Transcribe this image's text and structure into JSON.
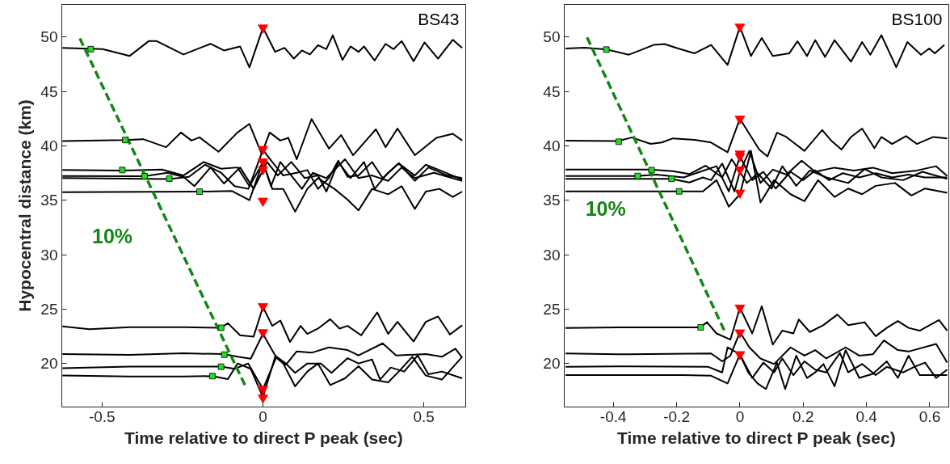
{
  "chart_data": [
    {
      "type": "line",
      "xlabel": "Time relative to direct P peak (sec)",
      "ylabel": "Hypocentral distance (km)",
      "xlim": [
        -0.625,
        0.63
      ],
      "ylim": [
        16,
        53
      ],
      "xticks": [
        -0.5,
        0,
        0.5
      ],
      "yticks": [
        20,
        25,
        30,
        35,
        40,
        45,
        50
      ],
      "grid": false,
      "annotations": [
        "BS43",
        "10%"
      ],
      "series": [
        {
          "type": "line",
          "color": "#000000",
          "x": [
            -0.623,
            -0.498,
            -0.414,
            -0.355,
            -0.33,
            -0.247,
            -0.163,
            -0.121,
            -0.071,
            -0.042,
            0,
            0.038,
            0.067,
            0.096,
            0.121,
            0.146,
            0.171,
            0.197,
            0.217,
            0.247,
            0.272,
            0.297,
            0.314,
            0.347,
            0.381,
            0.406,
            0.431,
            0.468,
            0.502,
            0.544,
            0.59,
            0.619
          ],
          "values": [
            49.01,
            48.89,
            48.27,
            49.63,
            49.63,
            48.4,
            49.38,
            48.77,
            49.14,
            47.21,
            50.86,
            48.64,
            49.01,
            48.02,
            48.77,
            48.4,
            49.26,
            48.89,
            50.17,
            47.9,
            49.14,
            48.64,
            49.14,
            47.85,
            49.38,
            48.89,
            49.63,
            47.78,
            49.51,
            48.02,
            49.75,
            49.01
          ]
        },
        {
          "type": "line",
          "color": "#000000",
          "x": [
            -0.623,
            -0.431,
            -0.372,
            -0.301,
            -0.255,
            -0.222,
            -0.197,
            -0.138,
            -0.079,
            -0.042,
            -0.004,
            0.021,
            0.054,
            0.079,
            0.105,
            0.151,
            0.205,
            0.243,
            0.28,
            0.351,
            0.381,
            0.418,
            0.472,
            0.539,
            0.59,
            0.619
          ],
          "values": [
            40.44,
            40.54,
            40.62,
            39.88,
            41.23,
            40.49,
            40.79,
            39.46,
            41.23,
            42.02,
            39.26,
            41.23,
            40.49,
            40.74,
            38.77,
            42.47,
            39.75,
            40.99,
            39.14,
            41.53,
            39.88,
            41.6,
            39.14,
            40.74,
            41.11,
            40.49
          ]
        },
        {
          "type": "line",
          "color": "#000000",
          "x": [
            -0.623,
            -0.439,
            -0.314,
            -0.247,
            -0.184,
            -0.13,
            -0.079,
            -0.042,
            0,
            0.029,
            0.063,
            0.105,
            0.138,
            0.171,
            0.205,
            0.234,
            0.263,
            0.297,
            0.339,
            0.372,
            0.422,
            0.472,
            0.506,
            0.548,
            0.619
          ],
          "values": [
            37.78,
            37.73,
            37.83,
            37.28,
            38.52,
            37.9,
            38.02,
            36.3,
            39.63,
            38.52,
            37.28,
            37.53,
            37.78,
            36.05,
            37.04,
            38.64,
            37.16,
            37.28,
            38.52,
            37.04,
            38.4,
            37.28,
            38.27,
            37.78,
            36.91
          ]
        },
        {
          "type": "line",
          "color": "#000000",
          "x": [
            -0.623,
            -0.368,
            -0.297,
            -0.247,
            -0.213,
            -0.163,
            -0.121,
            -0.071,
            -0.029,
            -0.004,
            0.013,
            0.046,
            0.088,
            0.13,
            0.171,
            0.197,
            0.234,
            0.272,
            0.314,
            0.347,
            0.389,
            0.422,
            0.472,
            0.514,
            0.573,
            0.619
          ],
          "values": [
            37.23,
            37.21,
            37.53,
            37.16,
            36.3,
            38.02,
            36.54,
            38.02,
            36.05,
            37.53,
            38.52,
            37.28,
            38.52,
            37.04,
            37.28,
            35.8,
            38.52,
            37.04,
            38.52,
            36.05,
            37.53,
            38.4,
            36.79,
            38.02,
            37.28,
            37.04
          ]
        },
        {
          "type": "line",
          "color": "#000000",
          "x": [
            -0.623,
            -0.291,
            -0.23,
            -0.18,
            -0.13,
            -0.088,
            -0.046,
            0,
            0.025,
            0.054,
            0.088,
            0.121,
            0.155,
            0.197,
            0.255,
            0.297,
            0.339,
            0.389,
            0.431,
            0.472,
            0.531,
            0.619
          ],
          "values": [
            37.04,
            36.96,
            37.16,
            38.27,
            37.53,
            36.3,
            36.05,
            38.52,
            36.3,
            38.52,
            37.28,
            36.05,
            37.53,
            37.04,
            38.77,
            37.04,
            37.28,
            36.79,
            38.02,
            37.04,
            37.53,
            36.79
          ]
        },
        {
          "type": "line",
          "color": "#000000",
          "x": [
            -0.623,
            -0.197,
            -0.096,
            -0.042,
            0,
            0.029,
            0.063,
            0.1,
            0.138,
            0.171,
            0.222,
            0.263,
            0.297,
            0.339,
            0.389,
            0.431,
            0.472,
            0.506,
            0.548,
            0.59,
            0.619
          ],
          "values": [
            35.75,
            35.8,
            35.85,
            35.01,
            38.52,
            36.05,
            36.05,
            33.95,
            36.05,
            37.04,
            36.05,
            35.06,
            34.07,
            36.05,
            35.55,
            36.3,
            34.2,
            35.8,
            36.05,
            35.31,
            35.8
          ]
        },
        {
          "type": "line",
          "color": "#000000",
          "x": [
            -0.623,
            -0.539,
            -0.414,
            -0.247,
            -0.13,
            -0.109,
            -0.071,
            -0.029,
            0,
            0.029,
            0.054,
            0.084,
            0.117,
            0.138,
            0.171,
            0.209,
            0.238,
            0.263,
            0.305,
            0.355,
            0.389,
            0.418,
            0.468,
            0.506,
            0.544,
            0.581,
            0.619
          ],
          "values": [
            23.41,
            23.16,
            23.33,
            23.33,
            23.28,
            23.7,
            22.59,
            22.47,
            25.19,
            23.46,
            23.95,
            21.98,
            23.46,
            22.72,
            23.21,
            24.07,
            23.21,
            23.46,
            22.59,
            24.69,
            22.72,
            23.83,
            22.02,
            23.83,
            24.32,
            22.67,
            23.51
          ]
        },
        {
          "type": "line",
          "color": "#000000",
          "x": [
            -0.623,
            -0.414,
            -0.247,
            -0.121,
            -0.079,
            -0.038,
            0,
            0.038,
            0.071,
            0.105,
            0.151,
            0.205,
            0.263,
            0.297,
            0.372,
            0.414,
            0.506,
            0.556,
            0.598,
            0.619
          ],
          "values": [
            20.86,
            20.79,
            20.94,
            20.86,
            20.62,
            20.44,
            22.72,
            20.74,
            19.88,
            21.11,
            20.99,
            21.48,
            21.23,
            20.74,
            21.85,
            20.74,
            20.86,
            20.62,
            21.36,
            20.54
          ]
        },
        {
          "type": "line",
          "color": "#000000",
          "x": [
            -0.623,
            -0.414,
            -0.247,
            -0.13,
            -0.088,
            -0.046,
            0,
            0.042,
            0.071,
            0.1,
            0.138,
            0.18,
            0.213,
            0.263,
            0.297,
            0.339,
            0.364,
            0.397,
            0.439,
            0.481,
            0.514,
            0.556,
            0.619
          ],
          "values": [
            19.57,
            19.72,
            19.72,
            19.72,
            19.51,
            20.0,
            17.65,
            20.62,
            20.0,
            19.14,
            20.0,
            20.0,
            19.14,
            20.49,
            20.0,
            20.37,
            18.52,
            19.63,
            19.26,
            20.74,
            19.01,
            19.26,
            18.64
          ]
        },
        {
          "type": "line",
          "color": "#000000",
          "x": [
            -0.623,
            -0.414,
            -0.247,
            -0.157,
            -0.109,
            -0.079,
            -0.038,
            0,
            0.038,
            0.063,
            0.1,
            0.138,
            0.171,
            0.209,
            0.255,
            0.297,
            0.339,
            0.389,
            0.422,
            0.464,
            0.506,
            0.556,
            0.619
          ],
          "values": [
            18.89,
            18.81,
            18.81,
            18.84,
            18.57,
            20.0,
            19.51,
            16.91,
            20.62,
            20.0,
            17.9,
            19.26,
            20.0,
            18.02,
            18.64,
            19.75,
            18.52,
            18.27,
            19.26,
            20.62,
            18.89,
            18.52,
            20.62
          ]
        },
        {
          "type": "line",
          "color": "#138613",
          "line_style": "dashed",
          "x": [
            -0.569,
            -0.056
          ],
          "values": [
            49.88,
            18.02
          ]
        },
        {
          "type": "scatter",
          "color": "#22dd22",
          "marker": "square",
          "x": [
            -0.535,
            -0.428,
            -0.437,
            -0.368,
            -0.291,
            -0.197,
            -0.13,
            -0.12,
            -0.13,
            -0.157
          ],
          "values": [
            48.89,
            40.54,
            37.78,
            37.21,
            36.99,
            35.8,
            23.28,
            20.81,
            19.7,
            18.84
          ]
        },
        {
          "type": "scatter",
          "color": "#ff0000",
          "marker": "triangle",
          "x": [
            0,
            0,
            0,
            0,
            0,
            0,
            0,
            0,
            0
          ],
          "values": [
            50.86,
            39.7,
            38.57,
            37.83,
            34.94,
            25.26,
            22.86,
            17.65,
            16.86
          ]
        }
      ]
    },
    {
      "type": "line",
      "xlabel": "Time relative to direct P peak (sec)",
      "xlim": [
        -0.555,
        0.66
      ],
      "ylim": [
        16,
        53
      ],
      "xticks": [
        -0.4,
        -0.2,
        0,
        0.2,
        0.4,
        0.6
      ],
      "yticks": [
        20,
        25,
        30,
        35,
        40,
        45,
        50
      ],
      "grid": false,
      "annotations": [
        "BS100",
        "10%"
      ],
      "series": [
        {
          "type": "line",
          "color": "#000000",
          "x": [
            -0.551,
            -0.49,
            -0.42,
            -0.351,
            -0.316,
            -0.273,
            -0.238,
            -0.195,
            -0.143,
            -0.091,
            -0.039,
            0,
            0.035,
            0.069,
            0.104,
            0.156,
            0.182,
            0.212,
            0.238,
            0.269,
            0.299,
            0.351,
            0.386,
            0.412,
            0.447,
            0.494,
            0.529,
            0.572,
            0.598,
            0.616,
            0.646
          ],
          "values": [
            48.95,
            49.03,
            48.85,
            48.38,
            48.77,
            49.28,
            49.36,
            48.95,
            48.51,
            49.28,
            47.44,
            50.95,
            48.26,
            49.92,
            48.26,
            48.51,
            49.62,
            48.26,
            49.72,
            48.18,
            49.72,
            47.74,
            49.54,
            48.38,
            50.18,
            47.23,
            49.54,
            48.38,
            48.95,
            48.51,
            49.28
          ]
        },
        {
          "type": "line",
          "color": "#000000",
          "x": [
            -0.551,
            -0.386,
            -0.342,
            -0.282,
            -0.247,
            -0.212,
            -0.143,
            -0.091,
            -0.039,
            0,
            0.039,
            0.061,
            0.087,
            0.117,
            0.147,
            0.169,
            0.204,
            0.26,
            0.29,
            0.321,
            0.351,
            0.386,
            0.425,
            0.447,
            0.481,
            0.525,
            0.559,
            0.611,
            0.655
          ],
          "values": [
            40.49,
            40.44,
            40.77,
            40.18,
            40.31,
            40.69,
            40.56,
            40.31,
            39.41,
            42.49,
            40.69,
            39.67,
            39.03,
            41.21,
            40.82,
            40.31,
            39.54,
            41.46,
            40.44,
            39.67,
            40.82,
            41.59,
            39.79,
            40.82,
            40.18,
            40.9,
            40.18,
            40.82,
            40.69
          ]
        },
        {
          "type": "line",
          "color": "#000000",
          "x": [
            -0.551,
            -0.282,
            -0.212,
            -0.16,
            -0.108,
            -0.056,
            -0.026,
            0,
            0.03,
            0.065,
            0.104,
            0.147,
            0.195,
            0.238,
            0.299,
            0.36,
            0.42,
            0.481,
            0.559,
            0.62,
            0.655
          ],
          "values": [
            37.82,
            37.82,
            37.67,
            37.41,
            38.18,
            37.1,
            38.77,
            37.62,
            39.54,
            36.59,
            37.82,
            37.36,
            38.64,
            37.62,
            38.0,
            37.74,
            38.0,
            37.49,
            37.74,
            38.13,
            37.23
          ]
        },
        {
          "type": "line",
          "color": "#000000",
          "x": [
            -0.551,
            -0.325,
            -0.264,
            -0.178,
            -0.126,
            -0.074,
            -0.035,
            0,
            0.039,
            0.074,
            0.113,
            0.16,
            0.199,
            0.238,
            0.282,
            0.325,
            0.377,
            0.429,
            0.481,
            0.533,
            0.585,
            0.655
          ],
          "values": [
            37.23,
            37.23,
            37.36,
            37.1,
            37.62,
            38.13,
            35.82,
            39.03,
            36.85,
            37.62,
            36.08,
            37.62,
            36.85,
            37.74,
            36.85,
            37.49,
            37.1,
            37.49,
            37.1,
            37.36,
            37.1,
            37.1
          ]
        },
        {
          "type": "line",
          "color": "#000000",
          "x": [
            -0.551,
            -0.217,
            -0.16,
            -0.117,
            -0.091,
            -0.056,
            -0.017,
            0,
            0.022,
            0.056,
            0.1,
            0.134,
            0.178,
            0.221,
            0.273,
            0.342,
            0.394,
            0.447,
            0.516,
            0.577,
            0.655
          ],
          "values": [
            36.97,
            36.97,
            36.64,
            37.1,
            36.85,
            38.38,
            35.82,
            37.62,
            36.59,
            37.49,
            36.08,
            38.13,
            36.33,
            37.74,
            37.1,
            36.59,
            37.87,
            37.1,
            36.85,
            37.62,
            36.97
          ]
        },
        {
          "type": "line",
          "color": "#000000",
          "x": [
            -0.551,
            -0.195,
            -0.117,
            -0.074,
            -0.035,
            0,
            0.035,
            0.065,
            0.108,
            0.16,
            0.204,
            0.247,
            0.299,
            0.342,
            0.386,
            0.429,
            0.49,
            0.542,
            0.585,
            0.655
          ],
          "values": [
            35.82,
            35.82,
            35.82,
            36.85,
            34.41,
            35.56,
            39.54,
            34.79,
            36.85,
            35.56,
            34.92,
            36.85,
            35.31,
            36.08,
            35.56,
            36.33,
            36.59,
            35.44,
            36.08,
            35.69
          ]
        },
        {
          "type": "line",
          "color": "#000000",
          "x": [
            -0.551,
            -0.351,
            -0.126,
            -0.104,
            -0.074,
            -0.03,
            0,
            0.039,
            0.069,
            0.104,
            0.134,
            0.169,
            0.186,
            0.221,
            0.264,
            0.308,
            0.342,
            0.394,
            0.429,
            0.464,
            0.499,
            0.533,
            0.568,
            0.629,
            0.655
          ],
          "values": [
            23.27,
            23.32,
            23.32,
            23.79,
            22.76,
            22.2,
            25.12,
            22.76,
            25.27,
            21.74,
            23.02,
            22.76,
            24.04,
            22.89,
            23.53,
            24.5,
            23.53,
            23.79,
            22.51,
            23.27,
            23.91,
            23.27,
            23.02,
            23.99,
            23.02
          ]
        },
        {
          "type": "line",
          "color": "#000000",
          "x": [
            -0.551,
            -0.351,
            -0.091,
            -0.056,
            -0.03,
            0,
            0.03,
            0.065,
            0.108,
            0.16,
            0.204,
            0.238,
            0.273,
            0.334,
            0.377,
            0.42,
            0.455,
            0.499,
            0.533,
            0.62,
            0.655
          ],
          "values": [
            20.92,
            20.84,
            20.92,
            20.2,
            20.72,
            22.89,
            21.48,
            20.46,
            19.95,
            21.48,
            20.72,
            21.23,
            20.46,
            21.48,
            20.72,
            20.84,
            22.12,
            21.23,
            21.1,
            21.79,
            20.08
          ]
        },
        {
          "type": "line",
          "color": "#000000",
          "x": [
            -0.551,
            -0.351,
            -0.1,
            -0.056,
            -0.039,
            0,
            0.039,
            0.074,
            0.108,
            0.134,
            0.169,
            0.204,
            0.238,
            0.273,
            0.316,
            0.342,
            0.386,
            0.429,
            0.464,
            0.516,
            0.551,
            0.585,
            0.62,
            0.655
          ],
          "values": [
            19.69,
            19.74,
            19.69,
            19.18,
            21.48,
            20.84,
            18.67,
            20.08,
            19.18,
            20.46,
            18.93,
            20.2,
            19.44,
            19.18,
            20.97,
            19.18,
            19.95,
            18.93,
            19.69,
            19.18,
            19.69,
            20.08,
            18.67,
            19.44
          ]
        },
        {
          "type": "line",
          "color": "#000000",
          "x": [
            -0.551,
            -0.178,
            -0.091,
            -0.039,
            0,
            0.026,
            0.056,
            0.082,
            0.117,
            0.143,
            0.178,
            0.212,
            0.238,
            0.264,
            0.299,
            0.334,
            0.377,
            0.42,
            0.464,
            0.499,
            0.533,
            0.568,
            0.62,
            0.655
          ],
          "values": [
            18.93,
            18.93,
            18.87,
            18.16,
            20.84,
            19.18,
            18.16,
            17.65,
            20.08,
            17.65,
            20.72,
            18.67,
            19.18,
            19.95,
            17.9,
            21.23,
            18.67,
            19.05,
            20.2,
            18.67,
            20.72,
            18.93,
            18.93,
            18.93
          ]
        },
        {
          "type": "line",
          "color": "#138613",
          "line_style": "dashed",
          "x": [
            -0.483,
            -0.049
          ],
          "values": [
            49.97,
            23.02
          ]
        },
        {
          "type": "scatter",
          "color": "#22dd22",
          "marker": "square",
          "x": [
            -0.422,
            -0.383,
            -0.279,
            -0.323,
            -0.216,
            -0.192,
            -0.124
          ],
          "values": [
            48.85,
            40.38,
            37.77,
            37.23,
            36.97,
            35.82,
            23.32
          ]
        },
        {
          "type": "scatter",
          "color": "#ff0000",
          "marker": "triangle",
          "x": [
            0,
            0,
            0,
            0,
            0,
            0,
            0,
            0,
            0
          ],
          "values": [
            50.95,
            42.49,
            39.28,
            39.03,
            37.82,
            35.69,
            25.12,
            22.84,
            20.84
          ]
        }
      ]
    }
  ]
}
